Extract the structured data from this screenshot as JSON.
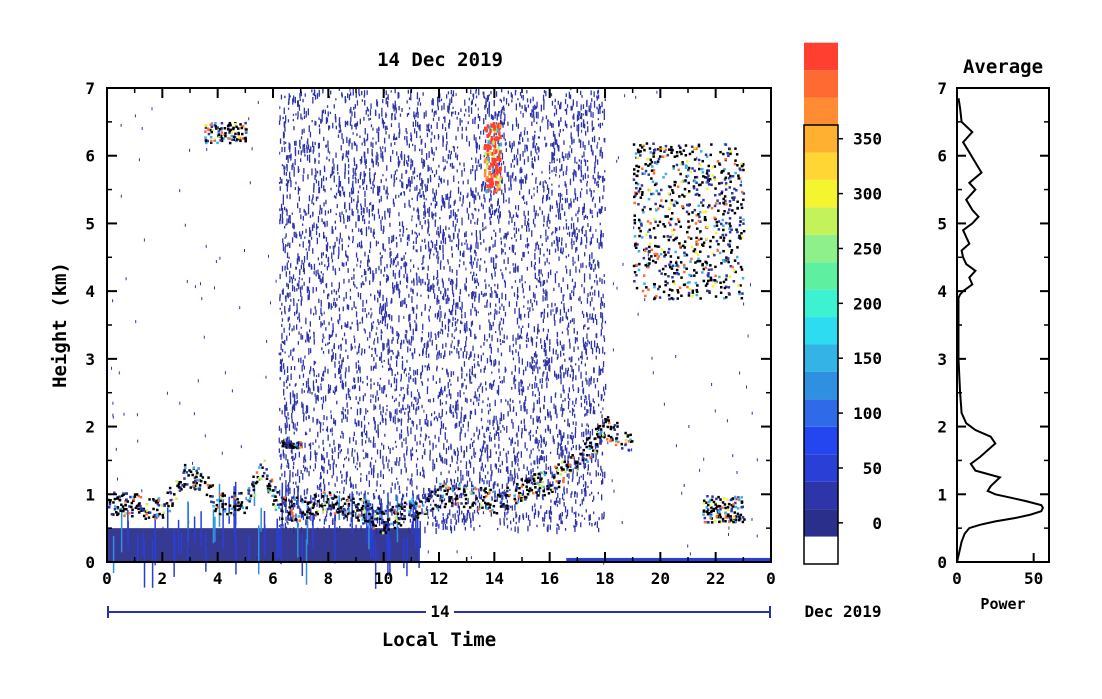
{
  "chart_data": [
    {
      "type": "heatmap",
      "title": "14 Dec 2019",
      "xlabel": "Local Time",
      "ylabel": "Height (km)",
      "xlim": [
        0,
        24
      ],
      "ylim": [
        0,
        7
      ],
      "x_ticks": [
        "0",
        "2",
        "4",
        "6",
        "8",
        "10",
        "12",
        "14",
        "16",
        "18",
        "20",
        "22",
        "0"
      ],
      "y_ticks": [
        "0",
        "1",
        "2",
        "3",
        "4",
        "5",
        "6",
        "7"
      ],
      "date_bar": {
        "day": "14",
        "month_year": "Dec 2019"
      },
      "colorbar": {
        "min": 0,
        "max": 375,
        "tick_labels": [
          "0",
          "50",
          "100",
          "150",
          "200",
          "250",
          "300",
          "350"
        ],
        "colors": [
          "#ffffff",
          "#2b2f8c",
          "#2e35a8",
          "#2a3fd6",
          "#2346f0",
          "#2f6be8",
          "#2f8fe0",
          "#33b3e6",
          "#2ddcf0",
          "#3cf2d0",
          "#5ef0a0",
          "#8ef08a",
          "#c4f25a",
          "#f5f52f",
          "#ffd633",
          "#ffb030",
          "#ff8c33",
          "#ff6a33",
          "#ff4030"
        ]
      },
      "features": [
        {
          "name": "noise",
          "t": [
            6.2,
            18.0
          ],
          "h": [
            0.5,
            7.0
          ]
        },
        {
          "name": "boundary-layer",
          "points": [
            [
              0,
              0.9
            ],
            [
              1,
              0.85
            ],
            [
              2,
              0.8
            ],
            [
              2.8,
              1.3
            ],
            [
              3.5,
              1.2
            ],
            [
              4,
              0.85
            ],
            [
              5,
              0.9
            ],
            [
              5.6,
              1.4
            ],
            [
              6.2,
              0.8
            ],
            [
              7,
              0.8
            ],
            [
              8,
              0.9
            ],
            [
              9,
              0.8
            ],
            [
              10,
              0.6
            ],
            [
              11,
              0.8
            ],
            [
              12,
              1.0
            ],
            [
              13,
              1.0
            ],
            [
              14,
              0.9
            ],
            [
              15,
              1.1
            ],
            [
              16,
              1.2
            ],
            [
              17,
              1.5
            ],
            [
              18,
              2.0
            ],
            [
              19,
              1.75
            ]
          ]
        },
        {
          "name": "low-layer",
          "t": [
            0.0,
            11.3
          ],
          "h": [
            0.0,
            0.5
          ]
        },
        {
          "name": "cloud",
          "t": [
            3.5,
            5.0
          ],
          "h": [
            6.2,
            6.5
          ]
        },
        {
          "name": "cloud",
          "t": [
            6.3,
            7.0
          ],
          "h": [
            1.7,
            1.8
          ]
        },
        {
          "name": "cloud",
          "t": [
            13.6,
            14.2
          ],
          "h": [
            5.5,
            6.5
          ]
        },
        {
          "name": "cloud",
          "t": [
            19.0,
            23.0
          ],
          "h": [
            3.9,
            6.2
          ]
        },
        {
          "name": "cloud",
          "t": [
            21.5,
            23.0
          ],
          "h": [
            0.6,
            1.0
          ]
        },
        {
          "name": "surface",
          "t": [
            16.6,
            24.0
          ],
          "h": [
            0.0,
            0.05
          ]
        }
      ]
    },
    {
      "type": "line",
      "title": "Average",
      "xlabel": "Power",
      "ylabel": "",
      "xlim": [
        0,
        60
      ],
      "ylim": [
        0,
        7
      ],
      "x_ticks": [
        "0",
        "50"
      ],
      "y_ticks": [
        "0",
        "1",
        "2",
        "3",
        "4",
        "5",
        "6",
        "7"
      ],
      "series": [
        {
          "x": [
            0,
            2,
            3,
            5,
            8,
            15,
            25,
            38,
            48,
            55,
            56,
            55,
            45,
            35,
            25,
            20,
            22,
            28,
            20,
            12,
            9,
            15,
            25,
            22,
            12,
            6,
            3,
            2,
            1,
            1,
            1,
            1,
            2,
            4,
            10,
            8,
            12,
            6,
            4,
            3,
            8,
            6,
            4,
            10,
            14,
            10,
            6,
            12,
            8,
            16,
            12,
            8,
            4,
            10,
            3,
            2,
            1
          ],
          "y": [
            0.0,
            0.2,
            0.3,
            0.42,
            0.5,
            0.55,
            0.6,
            0.65,
            0.7,
            0.75,
            0.8,
            0.84,
            0.9,
            0.95,
            1.0,
            1.05,
            1.12,
            1.25,
            1.3,
            1.35,
            1.45,
            1.55,
            1.75,
            1.85,
            1.95,
            2.05,
            2.2,
            2.5,
            3.0,
            3.4,
            3.8,
            3.9,
            3.95,
            4.0,
            4.1,
            4.2,
            4.3,
            4.4,
            4.5,
            4.6,
            4.7,
            4.8,
            4.9,
            5.0,
            5.1,
            5.2,
            5.35,
            5.5,
            5.6,
            5.75,
            5.9,
            6.05,
            6.2,
            6.35,
            6.5,
            6.7,
            6.85
          ]
        }
      ]
    }
  ]
}
